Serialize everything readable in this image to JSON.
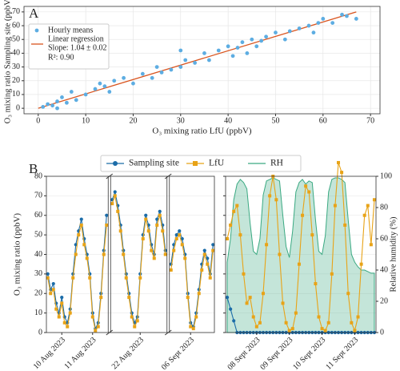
{
  "chart_data": [
    {
      "type": "scatter",
      "panel": "A",
      "xlabel": "O₃ mixing ratio LfU (ppbV)",
      "ylabel": "O₃ mixing ratio Sampling site (ppbV)",
      "xlim": [
        -3,
        72
      ],
      "ylim": [
        -4,
        74
      ],
      "xticks": [
        0,
        10,
        20,
        30,
        40,
        50,
        60,
        70
      ],
      "yticks": [
        0,
        10,
        20,
        30,
        40,
        50,
        60,
        70
      ],
      "grid": true,
      "series": [
        {
          "name": "Hourly means",
          "color": "#5dade2",
          "x": [
            1,
            2,
            3,
            4,
            4,
            5,
            6,
            7,
            8,
            10,
            12,
            13,
            14,
            15,
            16,
            18,
            20,
            22,
            24,
            25,
            26,
            28,
            30,
            30,
            31,
            33,
            35,
            36,
            38,
            40,
            41,
            42,
            43,
            44,
            45,
            46,
            47,
            48,
            50,
            52,
            53,
            55,
            57,
            58,
            59,
            60,
            62,
            64,
            65,
            67
          ],
          "values": [
            1,
            3,
            2,
            5,
            0,
            8,
            4,
            12,
            6,
            10,
            14,
            18,
            16,
            12,
            20,
            22,
            18,
            25,
            22,
            30,
            26,
            28,
            42,
            30,
            35,
            33,
            40,
            35,
            42,
            45,
            38,
            44,
            48,
            40,
            50,
            45,
            49,
            52,
            55,
            50,
            56,
            58,
            60,
            55,
            62,
            65,
            62,
            68,
            67,
            65
          ]
        },
        {
          "name": "Linear regression",
          "color": "#d9541e",
          "x": [
            0,
            67
          ],
          "values": [
            0,
            70
          ]
        }
      ],
      "annotations": [
        "Slope: 1.04 ± 0.02",
        "R²: 0.90"
      ]
    },
    {
      "type": "line",
      "panel": "B",
      "ylabel": "O₃ mixing ratio (ppbV)",
      "ylim": [
        0,
        80
      ],
      "yticks": [
        0,
        10,
        20,
        30,
        40,
        50,
        60,
        70,
        80
      ],
      "grid": true,
      "categories": [
        null,
        null,
        null,
        null,
        null,
        "10 Aug 2023",
        null,
        null,
        null,
        null,
        null,
        null,
        null,
        null,
        null,
        null,
        "11 Aug 2023",
        null,
        null,
        null,
        null,
        null,
        null,
        null,
        null,
        null,
        null,
        null,
        null,
        null,
        null,
        null,
        null,
        "22 Aug 2023",
        null,
        null,
        null,
        null,
        null,
        null,
        null,
        null,
        null,
        null,
        null,
        null,
        null,
        null,
        null,
        null,
        null,
        "06 Sept 2023",
        null,
        null,
        null,
        null,
        null,
        null,
        null,
        null
      ],
      "series": [
        {
          "color": "#1b6ca8",
          "values": [
            30,
            22,
            25,
            15,
            10,
            18,
            8,
            5,
            12,
            30,
            45,
            52,
            58,
            48,
            40,
            30,
            10,
            2,
            5,
            20,
            42,
            60,
            null,
            68,
            72,
            65,
            55,
            42,
            30,
            20,
            10,
            5,
            8,
            30,
            50,
            60,
            55,
            45,
            40,
            58,
            62,
            55,
            42,
            null,
            35,
            45,
            50,
            52,
            48,
            40,
            20,
            5,
            3,
            10,
            22,
            35,
            42,
            38,
            30,
            45
          ]
        },
        {
          "color": "#e8a317",
          "values": [
            28,
            20,
            22,
            12,
            8,
            15,
            5,
            3,
            10,
            28,
            40,
            50,
            55,
            45,
            38,
            28,
            8,
            1,
            3,
            18,
            40,
            55,
            null,
            66,
            70,
            62,
            52,
            40,
            28,
            18,
            8,
            3,
            6,
            28,
            48,
            58,
            52,
            42,
            38,
            55,
            60,
            52,
            40,
            null,
            32,
            42,
            48,
            50,
            45,
            38,
            18,
            3,
            2,
            8,
            20,
            32,
            40,
            35,
            28,
            42
          ]
        }
      ]
    },
    {
      "type": "line",
      "y2label": "Relative humidity (%)",
      "ylim": [
        0,
        80
      ],
      "yticks": [
        0,
        10,
        20,
        30,
        40,
        50,
        60,
        70,
        80
      ],
      "y2lim": [
        0,
        100
      ],
      "y2ticks": [
        0,
        20,
        40,
        60,
        80,
        100
      ],
      "categories": [
        null,
        null,
        null,
        null,
        null,
        null,
        null,
        null,
        null,
        "08 Sept 2023",
        null,
        null,
        null,
        null,
        null,
        null,
        null,
        null,
        null,
        "09 Sept 2023",
        null,
        null,
        null,
        null,
        null,
        null,
        null,
        null,
        null,
        "10 Sept 2023",
        null,
        null,
        null,
        null,
        null,
        null,
        null,
        null,
        null,
        "11 Sept 2023",
        null,
        null,
        null,
        null,
        null,
        null
      ],
      "series": [
        {
          "name": "Sampling site",
          "color": "#1b6ca8",
          "values": [
            18,
            12,
            6,
            0,
            0,
            0,
            0,
            0,
            0,
            0,
            0,
            0,
            0,
            0,
            0,
            0,
            0,
            0,
            0,
            0,
            0,
            0,
            0,
            0,
            0,
            0,
            0,
            0,
            0,
            0,
            0,
            0,
            0,
            0,
            0,
            0,
            0,
            0,
            0,
            0,
            0,
            0,
            0,
            0,
            0,
            0
          ]
        },
        {
          "name": "LfU",
          "color": "#e8a317",
          "values": [
            48,
            55,
            62,
            65,
            50,
            30,
            15,
            18,
            8,
            3,
            5,
            20,
            45,
            70,
            80,
            68,
            40,
            15,
            5,
            1,
            2,
            10,
            35,
            60,
            75,
            72,
            50,
            25,
            8,
            2,
            1,
            5,
            30,
            65,
            87,
            82,
            55,
            20,
            5,
            1,
            8,
            35,
            60,
            65,
            45,
            68
          ]
        },
        {
          "name": "RH",
          "color": "#3aa982",
          "axis": "y2",
          "values": [
            45,
            60,
            85,
            95,
            98,
            96,
            92,
            70,
            52,
            50,
            60,
            88,
            97,
            98,
            99,
            98,
            97,
            75,
            55,
            48,
            65,
            90,
            96,
            98,
            95,
            97,
            96,
            72,
            52,
            50,
            62,
            90,
            98,
            99,
            99,
            98,
            96,
            72,
            50,
            45,
            42,
            40,
            40,
            39,
            38,
            38
          ]
        }
      ]
    }
  ]
}
